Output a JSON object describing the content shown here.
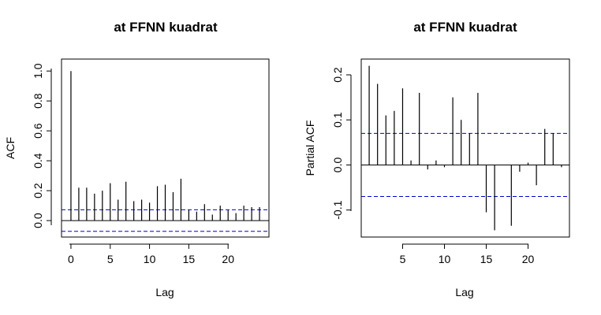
{
  "chart_data": [
    {
      "type": "bar",
      "title": "at FFNN kuadrat",
      "xlabel": "Lag",
      "ylabel": "ACF",
      "xlim": [
        -1.2,
        25.2
      ],
      "ylim": [
        -0.11,
        1.08
      ],
      "x_ticks": [
        0,
        5,
        10,
        15,
        20
      ],
      "x_tick_labels": [
        "0",
        "5",
        "10",
        "15",
        "20"
      ],
      "y_ticks": [
        0.0,
        0.2,
        0.4,
        0.6,
        0.8,
        1.0
      ],
      "y_tick_labels": [
        "0.0",
        "0.2",
        "0.4",
        "0.6",
        "0.8",
        "1.0"
      ],
      "confidence_bound": 0.072,
      "lags": [
        0,
        1,
        2,
        3,
        4,
        5,
        6,
        7,
        8,
        9,
        10,
        11,
        12,
        13,
        14,
        15,
        16,
        17,
        18,
        19,
        20,
        21,
        22,
        23,
        24
      ],
      "values": [
        1.0,
        0.22,
        0.22,
        0.18,
        0.2,
        0.25,
        0.14,
        0.26,
        0.13,
        0.14,
        0.12,
        0.23,
        0.24,
        0.19,
        0.28,
        0.07,
        0.06,
        0.11,
        0.04,
        0.1,
        0.07,
        0.05,
        0.1,
        0.09,
        0.09
      ],
      "colors": {
        "bars": "#000000",
        "bound": "#0000cc",
        "zero": "#000000"
      }
    },
    {
      "type": "bar",
      "title": "at FFNN kuadrat",
      "xlabel": "Lag",
      "ylabel": "Partial ACF",
      "xlim": [
        0.05,
        24.95
      ],
      "ylim": [
        -0.16,
        0.235
      ],
      "x_ticks": [
        5,
        10,
        15,
        20
      ],
      "x_tick_labels": [
        "5",
        "10",
        "15",
        "20"
      ],
      "y_ticks": [
        -0.1,
        0.0,
        0.1,
        0.2
      ],
      "y_tick_labels": [
        "-0.1",
        "0.0",
        "0.1",
        "0.2"
      ],
      "confidence_bound": 0.07,
      "lags": [
        1,
        2,
        3,
        4,
        5,
        6,
        7,
        8,
        9,
        10,
        11,
        12,
        13,
        14,
        15,
        16,
        17,
        18,
        19,
        20,
        21,
        22,
        23,
        24
      ],
      "values": [
        0.22,
        0.18,
        0.11,
        0.12,
        0.17,
        0.01,
        0.16,
        -0.01,
        0.01,
        -0.005,
        0.15,
        0.1,
        0.07,
        0.16,
        -0.105,
        -0.145,
        0.0,
        -0.135,
        -0.015,
        0.005,
        -0.045,
        0.08,
        0.07,
        -0.005
      ],
      "colors": {
        "bars": "#000000",
        "bound": "#0000cc",
        "zero": "#000000"
      }
    }
  ]
}
